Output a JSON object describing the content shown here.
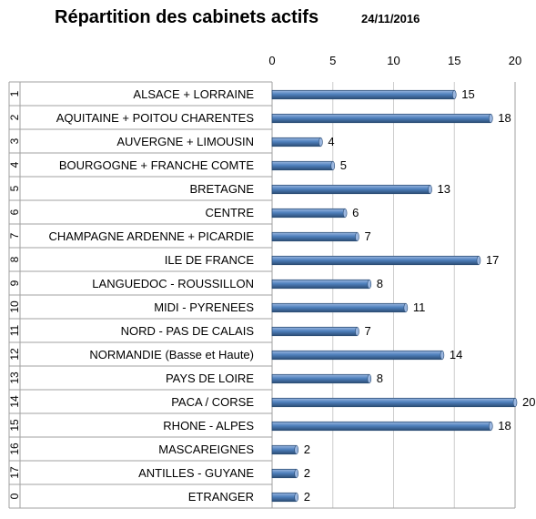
{
  "chart_data": {
    "type": "bar",
    "orientation": "horizontal",
    "title": "Répartition des cabinets actifs",
    "subtitle": "24/11/2016",
    "xlim": [
      0,
      20
    ],
    "xticks": [
      "0",
      "5",
      "10",
      "15",
      "20"
    ],
    "row_numbers": [
      "1",
      "2",
      "3",
      "4",
      "5",
      "6",
      "7",
      "8",
      "9",
      "10",
      "11",
      "12",
      "13",
      "14",
      "15",
      "16",
      "17",
      "0"
    ],
    "categories": [
      "ALSACE + LORRAINE",
      "AQUITAINE + POITOU CHARENTES",
      "AUVERGNE + LIMOUSIN",
      "BOURGOGNE + FRANCHE COMTE",
      "BRETAGNE",
      "CENTRE",
      "CHAMPAGNE ARDENNE + PICARDIE",
      "ILE DE FRANCE",
      "LANGUEDOC - ROUSSILLON",
      "MIDI - PYRENEES",
      "NORD - PAS DE CALAIS",
      "NORMANDIE (Basse et Haute)",
      "PAYS DE LOIRE",
      "PACA / CORSE",
      "RHONE - ALPES",
      "MASCAREIGNES",
      "ANTILLES - GUYANE",
      "ETRANGER"
    ],
    "values": [
      15,
      18,
      4,
      5,
      13,
      6,
      7,
      17,
      8,
      11,
      7,
      14,
      8,
      20,
      18,
      2,
      2,
      2
    ],
    "grid": true,
    "legend": "none",
    "colors": {
      "bar": "#4f81bd",
      "bar_dark": "#2c4d75",
      "bar_light": "#9bb7e0",
      "grid": "#cccccc",
      "border": "#a0a0a0"
    }
  }
}
